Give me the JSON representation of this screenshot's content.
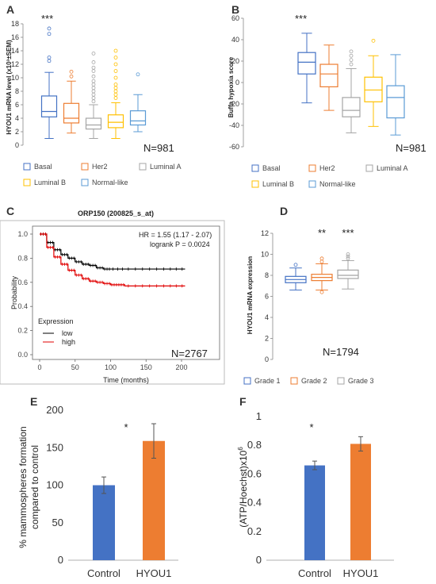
{
  "panels": {
    "A": {
      "letter": "A"
    },
    "B": {
      "letter": "B"
    },
    "C": {
      "letter": "C"
    },
    "D": {
      "letter": "D"
    },
    "E": {
      "letter": "E"
    },
    "F": {
      "letter": "F"
    }
  },
  "chart_data": [
    {
      "id": "A",
      "type": "box",
      "ylabel": "HYOU1 mRNA level (x10³±SEM)",
      "ylim": [
        0,
        18
      ],
      "yticks": [
        0,
        2,
        4,
        6,
        8,
        10,
        12,
        14,
        16,
        18
      ],
      "significance": "***",
      "n_label": "N=981",
      "series": [
        {
          "name": "Basal",
          "color": "#4472c4",
          "whisker_low": 1.0,
          "q1": 4.2,
          "median": 5.0,
          "q3": 7.3,
          "whisker_high": 10.8,
          "outliers": [
            12.5,
            13.0,
            16.5,
            17.3
          ]
        },
        {
          "name": "Her2",
          "color": "#ed7d31",
          "whisker_low": 1.8,
          "q1": 3.3,
          "median": 4.0,
          "q3": 6.2,
          "whisker_high": 9.5,
          "outliers": [
            10.2,
            10.9
          ]
        },
        {
          "name": "Luminal A",
          "color": "#a5a5a5",
          "whisker_low": 1.0,
          "q1": 2.4,
          "median": 3.0,
          "q3": 4.0,
          "whisker_high": 6.0,
          "outliers": [
            6.5,
            7.0,
            7.5,
            8.0,
            8.5,
            9.0,
            9.5,
            10.2,
            11.0,
            11.5,
            12.3,
            13.6
          ]
        },
        {
          "name": "Luminal B",
          "color": "#ffc000",
          "whisker_low": 1.0,
          "q1": 2.6,
          "median": 3.4,
          "q3": 4.5,
          "whisker_high": 6.3,
          "outliers": [
            7.0,
            7.5,
            8.0,
            8.5,
            9.0,
            10.0,
            11.0,
            12.0,
            13.0,
            14.0
          ]
        },
        {
          "name": "Normal-like",
          "color": "#5b9bd5",
          "whisker_low": 2.0,
          "q1": 3.0,
          "median": 3.6,
          "q3": 5.1,
          "whisker_high": 7.5,
          "outliers": [
            10.5
          ]
        }
      ]
    },
    {
      "id": "B",
      "type": "box",
      "ylabel": "Buffa hypoxia score",
      "ylim": [
        -60,
        60
      ],
      "yticks": [
        -60,
        -40,
        -20,
        0,
        20,
        40,
        60
      ],
      "significance": "***",
      "n_label": "N=981",
      "series": [
        {
          "name": "Basal",
          "color": "#4472c4",
          "whisker_low": -19,
          "q1": 8,
          "median": 19,
          "q3": 28,
          "whisker_high": 46,
          "outliers": []
        },
        {
          "name": "Her2",
          "color": "#ed7d31",
          "whisker_low": -26,
          "q1": -4,
          "median": 8,
          "q3": 17,
          "whisker_high": 35,
          "outliers": []
        },
        {
          "name": "Luminal A",
          "color": "#a5a5a5",
          "whisker_low": -47,
          "q1": -32,
          "median": -26,
          "q3": -14,
          "whisker_high": 13,
          "outliers": [
            17,
            21,
            25,
            29
          ]
        },
        {
          "name": "Luminal B",
          "color": "#ffc000",
          "whisker_low": -41,
          "q1": -18,
          "median": -7,
          "q3": 5,
          "whisker_high": 25,
          "outliers": [
            39
          ]
        },
        {
          "name": "Normal-like",
          "color": "#5b9bd5",
          "whisker_low": -49,
          "q1": -33,
          "median": -14,
          "q3": -3,
          "whisker_high": 26,
          "outliers": []
        }
      ]
    },
    {
      "id": "C",
      "type": "line",
      "title": "ORP150 (200825_s_at)",
      "xlabel": "Time (months)",
      "ylabel": "Probability",
      "xlim": [
        0,
        210
      ],
      "ylim": [
        0,
        1
      ],
      "xticks": [
        0,
        50,
        100,
        150,
        200
      ],
      "yticks": [
        0.0,
        0.2,
        0.4,
        0.6,
        0.8,
        1.0
      ],
      "hr_text": "HR = 1.55 (1.17 - 2.07)",
      "p_text": "logrank P = 0.0024",
      "legend_title": "Expression",
      "n_label": "N=2767",
      "series": [
        {
          "name": "low",
          "color": "#000000",
          "x": [
            0,
            10,
            20,
            30,
            40,
            50,
            60,
            70,
            80,
            90,
            100,
            120,
            150,
            180,
            205
          ],
          "y": [
            1.0,
            0.93,
            0.87,
            0.83,
            0.8,
            0.77,
            0.75,
            0.74,
            0.72,
            0.71,
            0.71,
            0.71,
            0.71,
            0.71,
            0.71
          ]
        },
        {
          "name": "high",
          "color": "#e00000",
          "x": [
            0,
            10,
            20,
            30,
            40,
            50,
            60,
            70,
            80,
            90,
            100,
            110,
            120,
            150,
            180,
            205
          ],
          "y": [
            1.0,
            0.89,
            0.81,
            0.75,
            0.7,
            0.66,
            0.63,
            0.61,
            0.6,
            0.59,
            0.58,
            0.58,
            0.57,
            0.57,
            0.57,
            0.57
          ]
        }
      ]
    },
    {
      "id": "D",
      "type": "box",
      "ylabel": "HYOU1 mRNA expression",
      "ylim": [
        0,
        12
      ],
      "yticks": [
        0,
        2,
        4,
        6,
        8,
        10,
        12
      ],
      "n_label": "N=1794",
      "significance_labels": [
        "",
        "**",
        "***"
      ],
      "series": [
        {
          "name": "Grade 1",
          "color": "#4472c4",
          "whisker_low": 6.6,
          "q1": 7.3,
          "median": 7.6,
          "q3": 7.9,
          "whisker_high": 8.7,
          "outliers": [
            9.0
          ]
        },
        {
          "name": "Grade 2",
          "color": "#ed7d31",
          "whisker_low": 6.6,
          "q1": 7.5,
          "median": 7.8,
          "q3": 8.1,
          "whisker_high": 9.1,
          "outliers": [
            6.4,
            9.3,
            9.6
          ]
        },
        {
          "name": "Grade 3",
          "color": "#a5a5a5",
          "whisker_low": 6.7,
          "q1": 7.7,
          "median": 8.0,
          "q3": 8.5,
          "whisker_high": 9.4,
          "outliers": [
            9.6,
            9.8,
            10.0
          ]
        }
      ]
    },
    {
      "id": "E",
      "type": "bar",
      "ylabel_line1": "% mammospheres formation",
      "ylabel_line2": "compared to control",
      "ylim": [
        0,
        200
      ],
      "yticks": [
        0,
        50,
        100,
        150,
        200
      ],
      "categories": [
        "Control",
        "HYOU1"
      ],
      "values": [
        100,
        159
      ],
      "errors": [
        11,
        23
      ],
      "colors": [
        "#4472c4",
        "#ed7d31"
      ],
      "significance": "*"
    },
    {
      "id": "F",
      "type": "bar",
      "ylabel": "(ATP/Hoechst)x10",
      "ylabel_sup": "6",
      "ylim": [
        0,
        1
      ],
      "yticks": [
        "0",
        "0.2",
        "0.4",
        "0.6",
        "0.8",
        "1"
      ],
      "categories": [
        "Control",
        "HYOU1"
      ],
      "values": [
        0.66,
        0.81
      ],
      "errors": [
        0.03,
        0.05
      ],
      "colors": [
        "#4472c4",
        "#ed7d31"
      ],
      "significance": "*"
    }
  ]
}
